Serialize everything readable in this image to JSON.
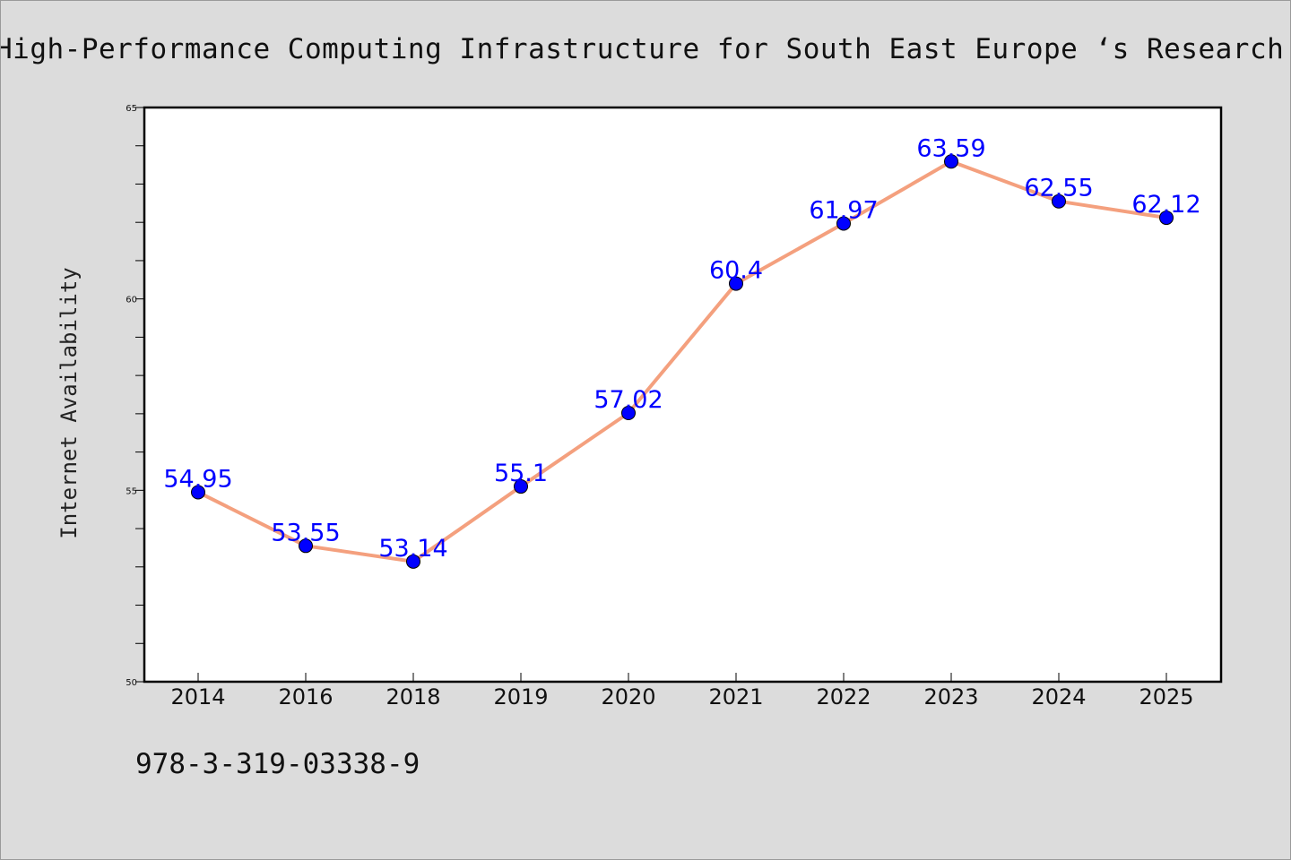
{
  "chart_data": {
    "type": "line",
    "title": "High-Performance Computing Infrastructure for South East Europe ‘s Research Communities",
    "ylabel": "Internet Availability",
    "xlabel": "",
    "categories": [
      "2014",
      "2016",
      "2018",
      "2019",
      "2020",
      "2021",
      "2022",
      "2023",
      "2024",
      "2025"
    ],
    "values": [
      54.95,
      53.55,
      53.14,
      55.1,
      57.02,
      60.4,
      61.97,
      63.59,
      62.55,
      62.12
    ],
    "value_labels": [
      "54.95",
      "53.55",
      "53.14",
      "55.1",
      "57.02",
      "60.4",
      "61.97",
      "63.59",
      "62.55",
      "62.12"
    ],
    "ylim": [
      50,
      65
    ],
    "yticks": [
      50,
      55,
      60,
      65
    ],
    "ytick_labels": [
      "50",
      "55",
      "60",
      "65"
    ],
    "grid": false,
    "line_color": "#f4a07e",
    "marker_color": "#0000ff",
    "label_color": "#0000ff"
  },
  "footer": {
    "isbn": "978-3-319-03338-9"
  }
}
